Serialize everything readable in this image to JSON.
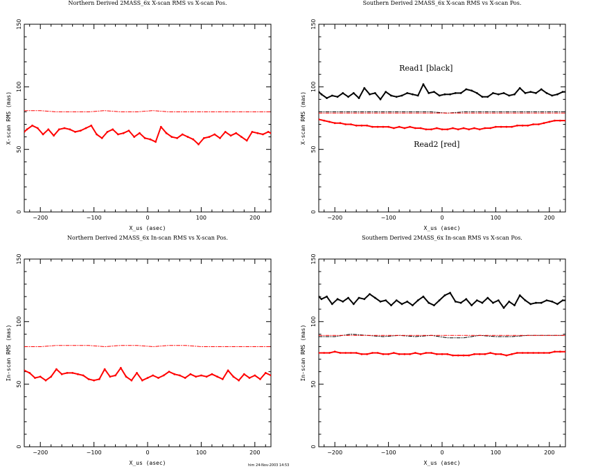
{
  "chart_data": [
    {
      "type": "line",
      "title": "Northern Derived 2MASS_6x X-scan RMS vs X-scan Pos.",
      "xlabel": "X_us (asec)",
      "ylabel": "X-scan RMS (mas)",
      "xlim": [
        -230,
        230
      ],
      "ylim": [
        0,
        150
      ],
      "xticks": [
        -200,
        -100,
        0,
        100,
        200
      ],
      "xtick_labels": [
        "−200",
        "−100",
        "0",
        "100",
        "200"
      ],
      "yticks": [
        0,
        50,
        100,
        150
      ],
      "ytick_labels": [
        "0",
        "50",
        "100",
        "150"
      ],
      "grid": false,
      "annotations": [],
      "series": [
        {
          "color": "#ff0000",
          "style": "solid",
          "width": 2,
          "marker": true,
          "x": [
            -230,
            -225,
            -215,
            -205,
            -195,
            -185,
            -175,
            -165,
            -155,
            -145,
            -135,
            -125,
            -115,
            -105,
            -95,
            -85,
            -75,
            -65,
            -55,
            -45,
            -35,
            -25,
            -15,
            -5,
            5,
            15,
            25,
            35,
            45,
            55,
            65,
            75,
            85,
            95,
            105,
            115,
            125,
            135,
            145,
            155,
            165,
            175,
            185,
            195,
            205,
            215,
            225,
            230
          ],
          "values": [
            64,
            66,
            69,
            67,
            62,
            66,
            61,
            66,
            67,
            66,
            64,
            65,
            67,
            69,
            62,
            59,
            64,
            66,
            62,
            63,
            65,
            60,
            63,
            59,
            58,
            56,
            68,
            63,
            60,
            59,
            62,
            60,
            58,
            54,
            59,
            60,
            62,
            59,
            64,
            61,
            63,
            60,
            57,
            64,
            63,
            62,
            64,
            63
          ]
        },
        {
          "color": "#ff0000",
          "style": "dashdot",
          "width": 1,
          "marker": false,
          "x": [
            -230,
            -200,
            -170,
            -140,
            -110,
            -80,
            -50,
            -20,
            10,
            40,
            70,
            100,
            130,
            160,
            190,
            230
          ],
          "values": [
            81,
            81,
            80,
            80,
            80,
            81,
            80,
            80,
            81,
            80,
            80,
            80,
            80,
            80,
            80,
            80
          ]
        }
      ]
    },
    {
      "type": "line",
      "title": "Southern Derived 2MASS_6x X-scan RMS vs X-scan Pos.",
      "xlabel": "X_us (asec)",
      "ylabel": "X-scan RMS (mas)",
      "xlim": [
        -230,
        230
      ],
      "ylim": [
        0,
        150
      ],
      "xticks": [
        -200,
        -100,
        0,
        100,
        200
      ],
      "xtick_labels": [
        "−200",
        "−100",
        "0",
        "100",
        "200"
      ],
      "yticks": [
        0,
        50,
        100,
        150
      ],
      "ytick_labels": [
        "0",
        "50",
        "100",
        "150"
      ],
      "grid": false,
      "annotations": [
        {
          "text": "Read1 [black]",
          "x": -30,
          "y": 113
        },
        {
          "text": "Read2 [red]",
          "x": -10,
          "y": 52
        }
      ],
      "series": [
        {
          "color": "#000000",
          "style": "solid",
          "width": 2,
          "marker": true,
          "x": [
            -230,
            -225,
            -215,
            -205,
            -195,
            -185,
            -175,
            -165,
            -155,
            -145,
            -135,
            -125,
            -115,
            -105,
            -95,
            -85,
            -75,
            -65,
            -55,
            -45,
            -35,
            -25,
            -15,
            -5,
            5,
            15,
            25,
            35,
            45,
            55,
            65,
            75,
            85,
            95,
            105,
            115,
            125,
            135,
            145,
            155,
            165,
            175,
            185,
            195,
            205,
            215,
            225,
            230
          ],
          "values": [
            96,
            94,
            91,
            93,
            92,
            95,
            92,
            95,
            91,
            99,
            94,
            95,
            90,
            96,
            93,
            92,
            93,
            95,
            94,
            93,
            102,
            95,
            96,
            93,
            94,
            94,
            95,
            95,
            98,
            97,
            95,
            92,
            92,
            95,
            94,
            95,
            93,
            94,
            99,
            95,
            96,
            95,
            98,
            95,
            93,
            94,
            96,
            96
          ]
        },
        {
          "color": "#000000",
          "style": "dashdot",
          "width": 1,
          "marker": false,
          "x": [
            -230,
            -200,
            -170,
            -140,
            -110,
            -80,
            -50,
            -20,
            10,
            40,
            70,
            100,
            130,
            160,
            190,
            230
          ],
          "values": [
            80,
            80,
            80,
            80,
            80,
            80,
            80,
            80,
            79,
            80,
            80,
            80,
            80,
            80,
            80,
            80
          ]
        },
        {
          "color": "#ff0000",
          "style": "dashdot",
          "width": 1,
          "marker": false,
          "x": [
            -230,
            -200,
            -170,
            -140,
            -110,
            -80,
            -50,
            -20,
            10,
            40,
            70,
            100,
            130,
            160,
            190,
            230
          ],
          "values": [
            79,
            79,
            79,
            79,
            79,
            79,
            79,
            79,
            79,
            79,
            79,
            79,
            79,
            79,
            79,
            79
          ]
        },
        {
          "color": "#ff0000",
          "style": "solid",
          "width": 2,
          "marker": true,
          "x": [
            -230,
            -220,
            -210,
            -200,
            -190,
            -180,
            -170,
            -160,
            -150,
            -140,
            -130,
            -120,
            -110,
            -100,
            -90,
            -80,
            -70,
            -60,
            -50,
            -40,
            -30,
            -20,
            -10,
            0,
            10,
            20,
            30,
            40,
            50,
            60,
            70,
            80,
            90,
            100,
            110,
            120,
            130,
            140,
            150,
            160,
            170,
            180,
            190,
            200,
            210,
            220,
            230
          ],
          "values": [
            74,
            73,
            72,
            71,
            71,
            70,
            70,
            69,
            69,
            69,
            68,
            68,
            68,
            68,
            67,
            68,
            67,
            68,
            67,
            67,
            66,
            66,
            67,
            66,
            66,
            67,
            66,
            67,
            66,
            67,
            66,
            67,
            67,
            68,
            68,
            68,
            68,
            69,
            69,
            69,
            70,
            70,
            71,
            72,
            73,
            73,
            73
          ]
        }
      ]
    },
    {
      "type": "line",
      "title": "Northern Derived 2MASS_6x In-scan RMS vs X-scan Pos.",
      "xlabel": "X_us (asec)",
      "ylabel": "In-scan RMS (mas)",
      "xlim": [
        -230,
        230
      ],
      "ylim": [
        0,
        150
      ],
      "xticks": [
        -200,
        -100,
        0,
        100,
        200
      ],
      "xtick_labels": [
        "−200",
        "−100",
        "0",
        "100",
        "200"
      ],
      "yticks": [
        0,
        50,
        100,
        150
      ],
      "ytick_labels": [
        "0",
        "50",
        "100",
        "150"
      ],
      "grid": false,
      "annotations": [],
      "series": [
        {
          "color": "#ff0000",
          "style": "solid",
          "width": 2,
          "marker": true,
          "x": [
            -230,
            -220,
            -210,
            -200,
            -190,
            -180,
            -170,
            -160,
            -150,
            -140,
            -130,
            -120,
            -110,
            -100,
            -90,
            -80,
            -70,
            -60,
            -50,
            -40,
            -30,
            -20,
            -10,
            0,
            10,
            20,
            30,
            40,
            50,
            60,
            70,
            80,
            90,
            100,
            110,
            120,
            130,
            140,
            150,
            160,
            170,
            180,
            190,
            200,
            210,
            220,
            230
          ],
          "values": [
            61,
            59,
            55,
            56,
            53,
            56,
            62,
            58,
            59,
            59,
            58,
            57,
            54,
            53,
            54,
            62,
            56,
            57,
            63,
            56,
            53,
            59,
            53,
            55,
            57,
            55,
            57,
            60,
            58,
            57,
            55,
            58,
            56,
            57,
            56,
            58,
            56,
            54,
            61,
            56,
            53,
            58,
            55,
            57,
            54,
            59,
            57
          ]
        },
        {
          "color": "#ff0000",
          "style": "dashdot",
          "width": 1,
          "marker": false,
          "x": [
            -230,
            -200,
            -170,
            -140,
            -110,
            -80,
            -50,
            -20,
            10,
            40,
            70,
            100,
            130,
            160,
            190,
            230
          ],
          "values": [
            80,
            80,
            81,
            81,
            81,
            80,
            81,
            81,
            80,
            81,
            81,
            80,
            80,
            80,
            80,
            80
          ]
        }
      ]
    },
    {
      "type": "line",
      "title": "Southern Derived 2MASS_6x In-scan RMS vs X-scan Pos.",
      "xlabel": "X_us (asec)",
      "ylabel": "In-scan RMS (mas)",
      "xlim": [
        -230,
        230
      ],
      "ylim": [
        0,
        150
      ],
      "xticks": [
        -200,
        -100,
        0,
        100,
        200
      ],
      "xtick_labels": [
        "−200",
        "−100",
        "0",
        "100",
        "200"
      ],
      "yticks": [
        0,
        50,
        100,
        150
      ],
      "ytick_labels": [
        "0",
        "50",
        "100",
        "150"
      ],
      "grid": false,
      "annotations": [],
      "series": [
        {
          "color": "#000000",
          "style": "solid",
          "width": 2,
          "marker": true,
          "x": [
            -230,
            -225,
            -215,
            -205,
            -195,
            -185,
            -175,
            -165,
            -155,
            -145,
            -135,
            -125,
            -115,
            -105,
            -95,
            -85,
            -75,
            -65,
            -55,
            -45,
            -35,
            -25,
            -15,
            -5,
            5,
            15,
            25,
            35,
            45,
            55,
            65,
            75,
            85,
            95,
            105,
            115,
            125,
            135,
            145,
            155,
            165,
            175,
            185,
            195,
            205,
            215,
            225,
            230
          ],
          "values": [
            120,
            118,
            120,
            114,
            118,
            116,
            119,
            114,
            119,
            118,
            122,
            119,
            116,
            117,
            113,
            117,
            114,
            116,
            113,
            117,
            120,
            115,
            113,
            117,
            121,
            123,
            116,
            115,
            118,
            113,
            117,
            115,
            119,
            115,
            117,
            111,
            116,
            113,
            121,
            117,
            114,
            115,
            115,
            117,
            116,
            114,
            117,
            117
          ]
        },
        {
          "color": "#000000",
          "style": "dashdot",
          "width": 1,
          "marker": false,
          "x": [
            -230,
            -200,
            -170,
            -140,
            -110,
            -80,
            -50,
            -20,
            10,
            40,
            70,
            100,
            130,
            160,
            190,
            230
          ],
          "values": [
            88,
            88,
            90,
            89,
            88,
            89,
            88,
            89,
            87,
            87,
            89,
            88,
            88,
            89,
            89,
            89
          ]
        },
        {
          "color": "#ff0000",
          "style": "dashdot",
          "width": 1,
          "marker": false,
          "x": [
            -230,
            -200,
            -170,
            -140,
            -110,
            -80,
            -50,
            -20,
            10,
            40,
            70,
            100,
            130,
            160,
            190,
            230
          ],
          "values": [
            89,
            89,
            89,
            89,
            89,
            89,
            89,
            89,
            89,
            89,
            89,
            89,
            89,
            89,
            89,
            89
          ]
        },
        {
          "color": "#ff0000",
          "style": "solid",
          "width": 2,
          "marker": true,
          "x": [
            -230,
            -220,
            -210,
            -200,
            -190,
            -180,
            -170,
            -160,
            -150,
            -140,
            -130,
            -120,
            -110,
            -100,
            -90,
            -80,
            -70,
            -60,
            -50,
            -40,
            -30,
            -20,
            -10,
            0,
            10,
            20,
            30,
            40,
            50,
            60,
            70,
            80,
            90,
            100,
            110,
            120,
            130,
            140,
            150,
            160,
            170,
            180,
            190,
            200,
            210,
            220,
            230
          ],
          "values": [
            75,
            75,
            75,
            76,
            75,
            75,
            75,
            75,
            74,
            74,
            75,
            75,
            74,
            74,
            75,
            74,
            74,
            74,
            75,
            74,
            75,
            75,
            74,
            74,
            74,
            73,
            73,
            73,
            73,
            74,
            74,
            74,
            75,
            74,
            74,
            73,
            74,
            75,
            75,
            75,
            75,
            75,
            75,
            75,
            76,
            76,
            76
          ]
        }
      ]
    }
  ],
  "footer": {
    "stamp": "him 24-Nov-2003 14:53"
  }
}
